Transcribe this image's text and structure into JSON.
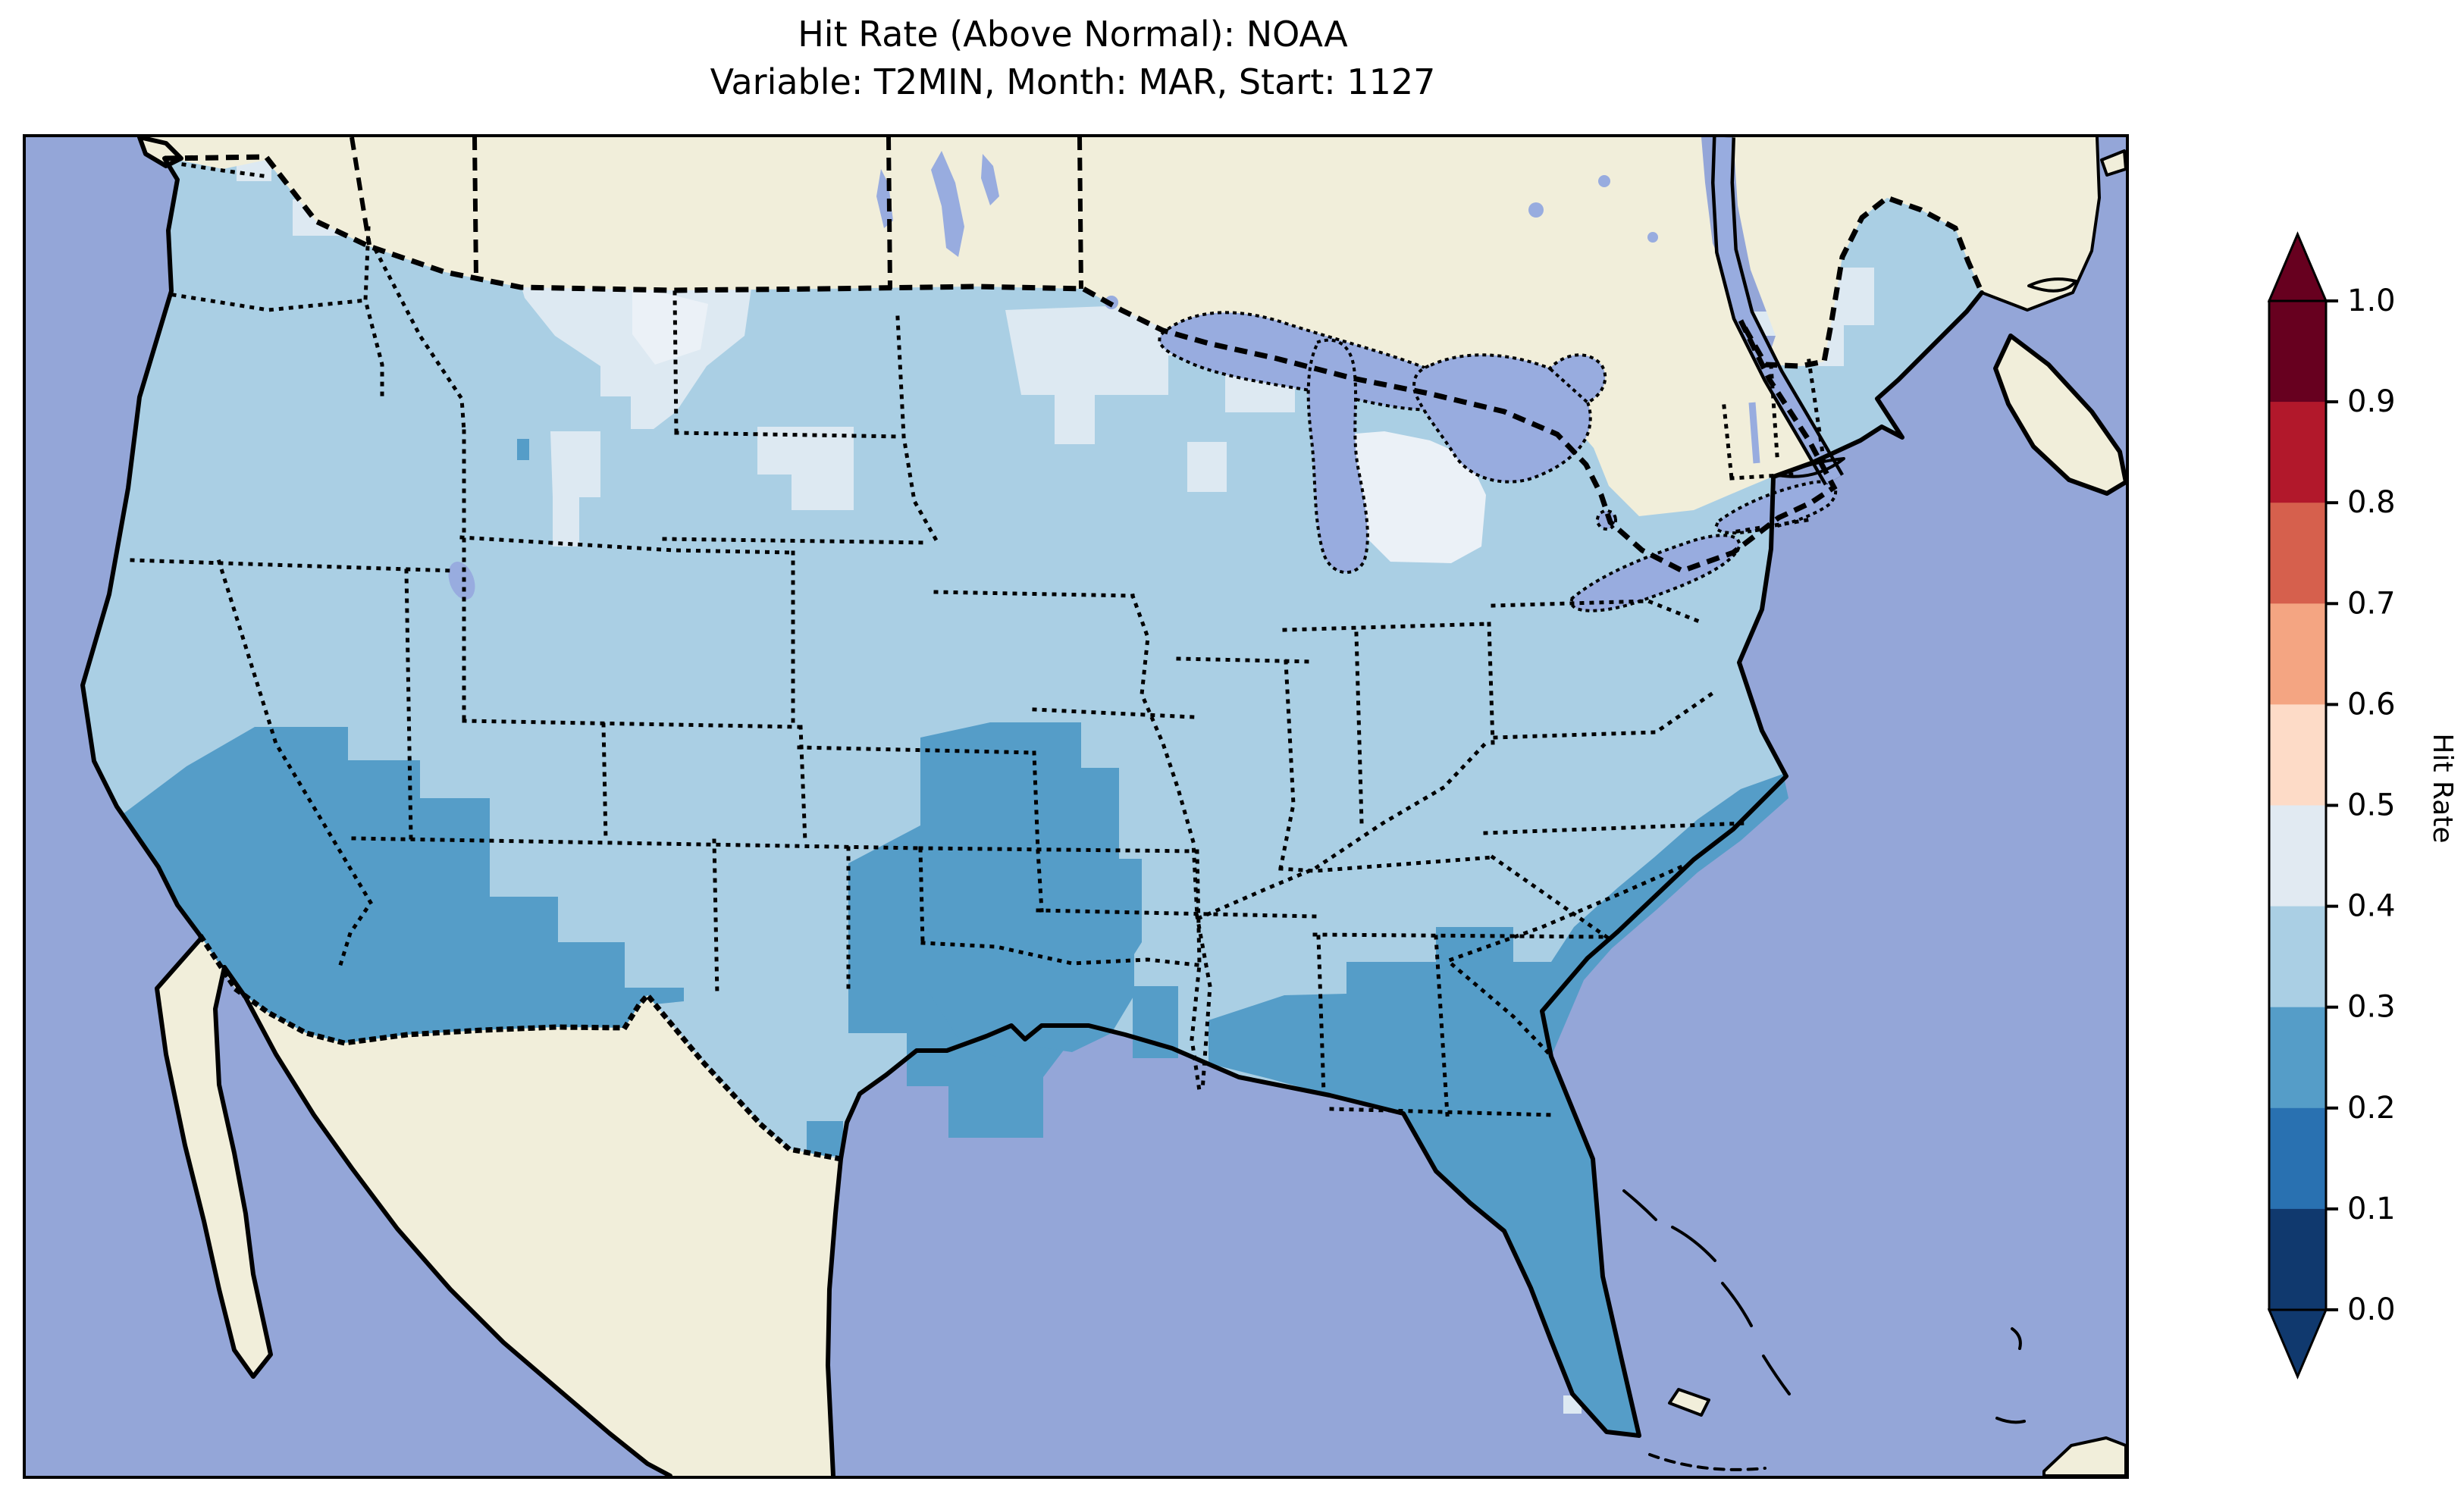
{
  "title": {
    "line1": "Hit Rate (Above Normal): NOAA",
    "line2": "Variable: T2MIN, Month: MAR, Start: 1127"
  },
  "colorbar": {
    "label": "Hit Rate",
    "ticks": [
      "1.0",
      "0.9",
      "0.8",
      "0.7",
      "0.6",
      "0.5",
      "0.4",
      "0.3",
      "0.2",
      "0.1",
      "0.0"
    ],
    "segment_colors_top_to_bottom": [
      "#67001f",
      "#b2182b",
      "#d6604d",
      "#f4a582",
      "#fddbc7",
      "#e1eaf2",
      "#aacfe4",
      "#559dc8",
      "#2971b1",
      "#10396e"
    ],
    "arrow_top_color": "#67001f",
    "arrow_bottom_color": "#10396e",
    "extend": "both"
  },
  "map": {
    "colors": {
      "ocean": "#94a6d8",
      "land": "#f1eeda",
      "us_base": "#aacfe4",
      "pale_bin": "#dde9f2",
      "paler_bin": "#ebf1f7",
      "dark_bin": "#559dc8",
      "lake": "#98acdf",
      "coastline": "#000000"
    },
    "features": {
      "country_border_style": "dashed",
      "state_border_style": "dotted",
      "projection": "Lambert-conformal style CONUS view with Canada and Mexico masked in beige"
    }
  },
  "chart_data": {
    "type": "heatmap",
    "title": "Hit Rate (Above Normal): NOAA",
    "subtitle": "Variable: T2MIN, Month: MAR, Start: 1127",
    "colorbar_label": "Hit Rate",
    "scale_ticks": [
      1.0,
      0.9,
      0.8,
      0.7,
      0.6,
      0.5,
      0.4,
      0.3,
      0.2,
      0.1,
      0.0
    ],
    "bin_edges": [
      0.0,
      0.1,
      0.2,
      0.3,
      0.4,
      0.5,
      0.6,
      0.7,
      0.8,
      0.9,
      1.0
    ],
    "bin_colors_low_to_high": [
      "#10396e",
      "#2971b1",
      "#559dc8",
      "#aacfe4",
      "#e1eaf2",
      "#fddbc7",
      "#f4a582",
      "#d6604d",
      "#b2182b",
      "#67001f"
    ],
    "observed_regions": [
      {
        "region": "Most of the CONUS interior (plains, midwest, northeast, west coast)",
        "hit_rate_bin": "0.3-0.4"
      },
      {
        "region": "Southern California / Arizona / southern Nevada-Utah / western New Mexico",
        "hit_rate_bin": "0.2-0.3"
      },
      {
        "region": "West Texas, Oklahoma / Texas panhandle band",
        "hit_rate_bin": "0.2-0.3"
      },
      {
        "region": "Louisiana, Mississippi, southern Arkansas",
        "hit_rate_bin": "0.2-0.3"
      },
      {
        "region": "Florida, southern Georgia, coastal Carolinas, Gulf coast",
        "hit_rate_bin": "0.2-0.3"
      },
      {
        "region": "Montana, western Dakotas, Minnesota, Wisconsin, lower Michigan, northern New England",
        "hit_rate_bin": "0.4-0.5"
      },
      {
        "region": "Single cells in Wyoming and northern Maine",
        "hit_rate_bin": "0.2-0.3"
      }
    ]
  }
}
